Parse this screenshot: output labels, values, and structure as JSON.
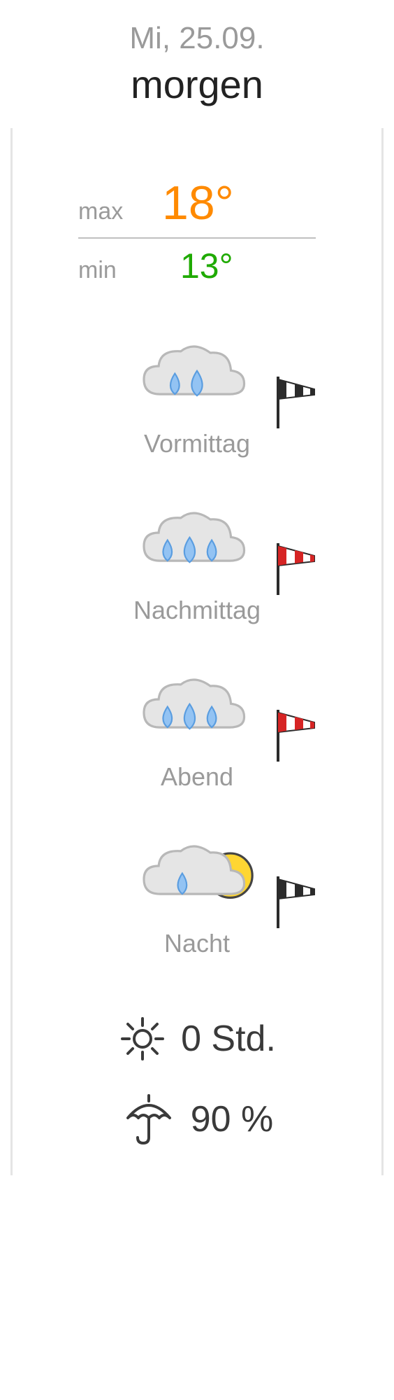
{
  "header": {
    "date": "Mi, 25.09.",
    "day_label": "morgen"
  },
  "temps": {
    "max_label": "max",
    "max_value": "18°",
    "min_label": "min",
    "min_value": "13°",
    "max_color": "#ff8a00",
    "min_color": "#1faa00"
  },
  "periods": [
    {
      "label": "Vormittag",
      "icon": "rain2",
      "wind": "black"
    },
    {
      "label": "Nachmittag",
      "icon": "rain3",
      "wind": "red"
    },
    {
      "label": "Abend",
      "icon": "rain3",
      "wind": "red"
    },
    {
      "label": "Nacht",
      "icon": "rain1_moon",
      "wind": "black"
    }
  ],
  "stats": {
    "sun_label": "0 Std.",
    "rain_label": "90 %"
  },
  "colors": {
    "cloud_fill": "#e5e5e5",
    "cloud_stroke": "#b8b8b8",
    "drop_fill": "#93c3f3",
    "drop_stroke": "#5a9de0",
    "moon_fill": "#ffd633",
    "moon_stroke": "#444444",
    "wind_black": "#2b2b2b",
    "wind_red": "#d62424",
    "text_muted": "#9a9a9a"
  }
}
